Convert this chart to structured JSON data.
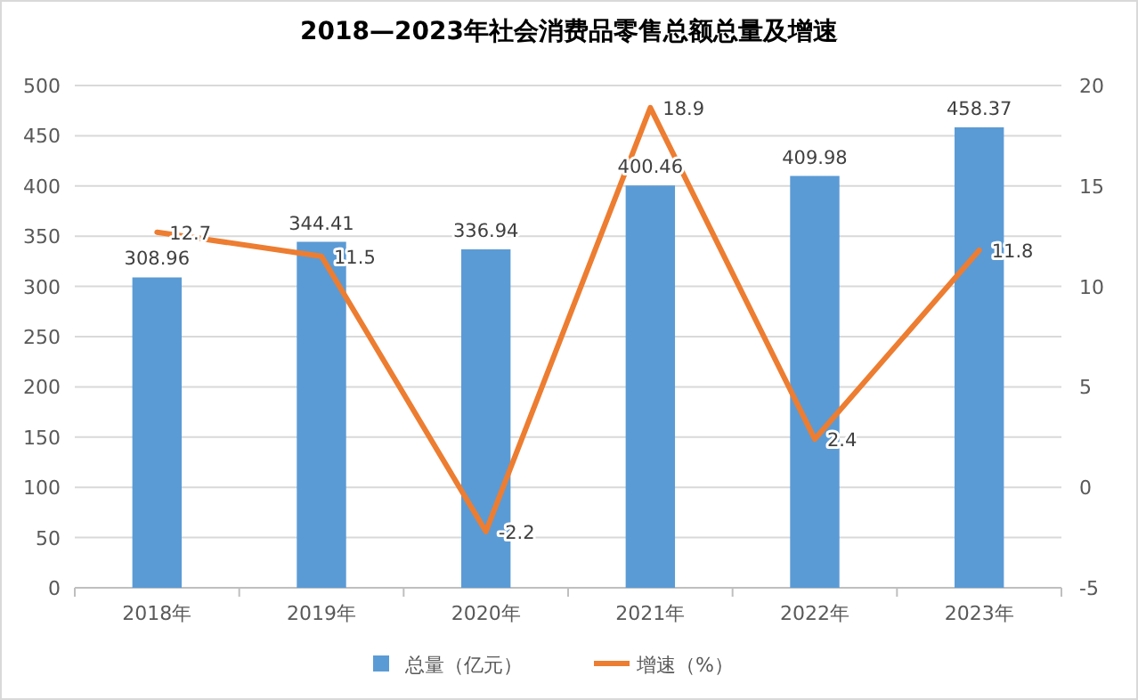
{
  "chart_data": {
    "type": "bar",
    "title": "2018—2023年社会消费品零售总额总量及增速",
    "categories": [
      "2018年",
      "2019年",
      "2020年",
      "2021年",
      "2022年",
      "2023年"
    ],
    "series": [
      {
        "name": "总量（亿元）",
        "color": "#5b9bd5",
        "values": [
          308.96,
          344.41,
          336.94,
          400.46,
          409.98,
          458.37
        ]
      },
      {
        "name": "增速（%）",
        "type": "line",
        "axis": "y2",
        "color": "#ed7d31",
        "values": [
          12.7,
          11.5,
          -2.2,
          18.9,
          2.4,
          11.8
        ]
      }
    ],
    "ylim": [
      0,
      500
    ],
    "yticks": [
      0,
      50,
      100,
      150,
      200,
      250,
      300,
      350,
      400,
      450,
      500
    ],
    "y2lim": [
      -5,
      20
    ],
    "y2ticks": [
      -5,
      0,
      5,
      10,
      15,
      20
    ],
    "grid": "y",
    "legend": "bottom",
    "data_labels": true,
    "marker": "none",
    "line_style": "solid"
  }
}
